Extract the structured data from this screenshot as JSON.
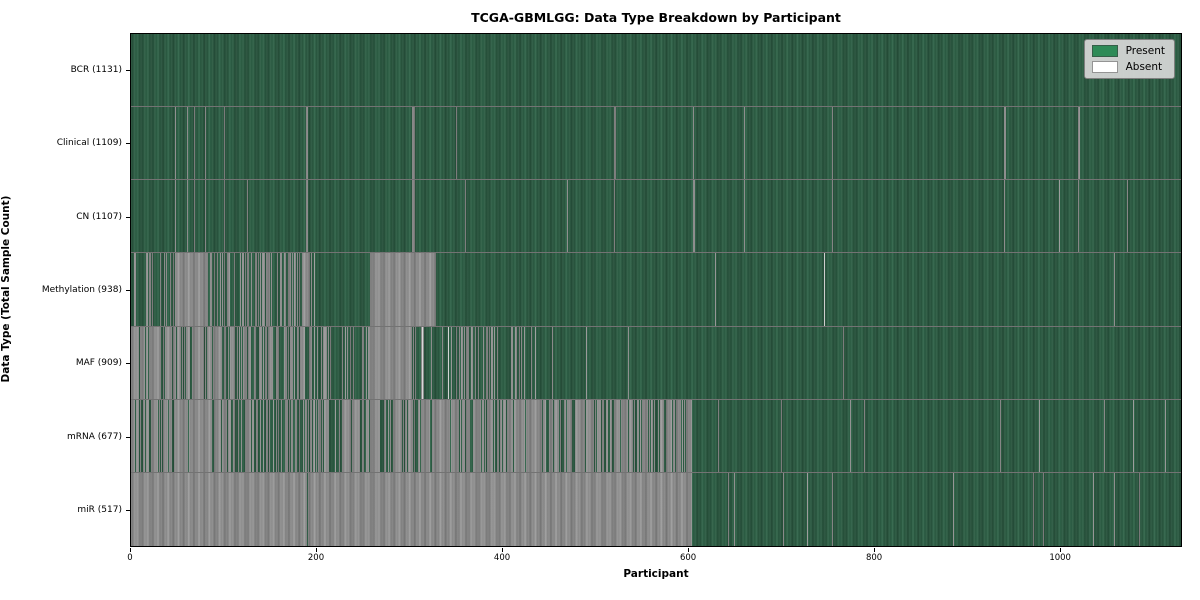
{
  "chart_data": {
    "type": "heatmap",
    "title": "TCGA-GBMLGG: Data Type Breakdown by Participant",
    "xlabel": "Participant",
    "ylabel": "Data Type (Total Sample Count)",
    "x_range": [
      0,
      1131
    ],
    "x_ticks": [
      0,
      200,
      400,
      600,
      800,
      1000
    ],
    "grid": false,
    "legend_position": "upper right",
    "colors": {
      "present": "#2e8b57",
      "present_bar": "#2e6448",
      "absent": "#ffffff",
      "absent_bar": "#9e9e9e"
    },
    "legend": {
      "items": [
        {
          "label": "Present",
          "color": "#2e8b57"
        },
        {
          "label": "Absent",
          "color": "#ffffff"
        }
      ]
    },
    "rows": [
      {
        "label": "BCR (1131)",
        "data_type": "BCR",
        "total": 1131,
        "segments": [
          [
            0,
            1131,
            "p"
          ]
        ]
      },
      {
        "label": "Clinical (1109)",
        "data_type": "Clinical",
        "total": 1109,
        "segments": [
          [
            0,
            1131,
            "p"
          ]
        ],
        "absent_positions": [
          47,
          60,
          68,
          80,
          100,
          188,
          189,
          190,
          303,
          304,
          305,
          350,
          425,
          520,
          521,
          605,
          660,
          755,
          940,
          941,
          1020,
          1021
        ]
      },
      {
        "label": "CN (1107)",
        "data_type": "CN",
        "total": 1107,
        "segments": [
          [
            0,
            1131,
            "p"
          ]
        ],
        "absent_positions": [
          47,
          60,
          68,
          80,
          100,
          125,
          188,
          189,
          190,
          303,
          304,
          305,
          360,
          425,
          470,
          520,
          605,
          606,
          660,
          755,
          940,
          1000,
          1020,
          1073
        ]
      },
      {
        "label": "Methylation (938)",
        "data_type": "Methylation",
        "total": 938,
        "segments": [
          [
            0,
            47,
            "m",
            0.7
          ],
          [
            47,
            82,
            "a"
          ],
          [
            82,
            139,
            "m",
            0.45
          ],
          [
            139,
            199,
            "m",
            0.35
          ],
          [
            199,
            257,
            "p"
          ],
          [
            257,
            328,
            "a"
          ],
          [
            328,
            1131,
            "m",
            0.995
          ]
        ]
      },
      {
        "label": "MAF (909)",
        "data_type": "MAF",
        "total": 909,
        "segments": [
          [
            0,
            95,
            "m",
            0.12
          ],
          [
            95,
            160,
            "m",
            0.45
          ],
          [
            160,
            255,
            "m",
            0.65
          ],
          [
            255,
            303,
            "a"
          ],
          [
            303,
            433,
            "m",
            0.78
          ],
          [
            433,
            610,
            "m",
            0.97
          ],
          [
            610,
            1131,
            "m",
            0.995
          ]
        ]
      },
      {
        "label": "mRNA (677)",
        "data_type": "mRNA",
        "total": 677,
        "segments": [
          [
            0,
            91,
            "m",
            0.1
          ],
          [
            91,
            210,
            "m",
            0.45
          ],
          [
            210,
            604,
            "m",
            0.25
          ],
          [
            604,
            1131,
            "m",
            0.98
          ]
        ]
      },
      {
        "label": "miR (517)",
        "data_type": "miR",
        "total": 517,
        "segments": [
          [
            0,
            604,
            "a"
          ],
          [
            604,
            1131,
            "m",
            0.975
          ]
        ],
        "present_positions": [
          190,
          258
        ]
      }
    ]
  }
}
